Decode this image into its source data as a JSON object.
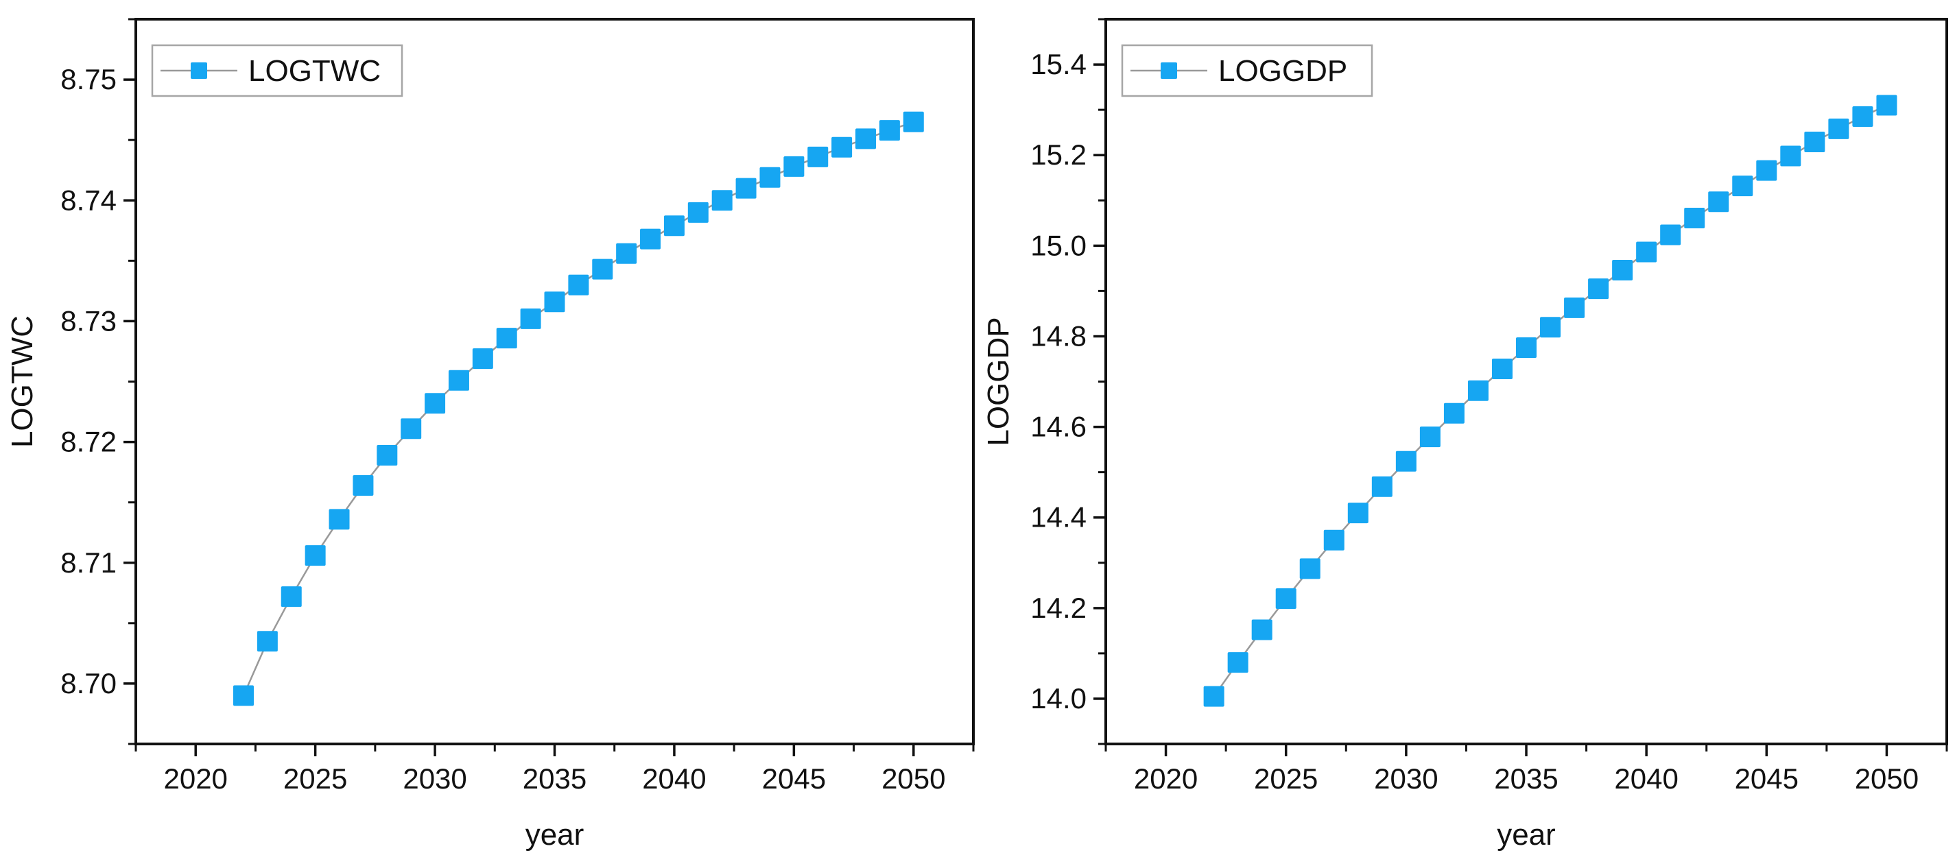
{
  "page": {
    "background": "#ffffff"
  },
  "colors": {
    "marker_fill": "#16a6f2",
    "series_line": "#999999",
    "axis_line": "#111111",
    "tick_label": "#111111",
    "legend_border": "#a6a6a6",
    "legend_background": "#ffffff"
  },
  "chart_data": [
    {
      "type": "line",
      "title": "",
      "xlabel": "year",
      "ylabel": "LOGTWC",
      "legend": {
        "label": "LOGTWC",
        "position": "top-left"
      },
      "grid": false,
      "marker": "square",
      "xlim": [
        2017.5,
        2052.5
      ],
      "ylim": [
        8.695,
        8.755
      ],
      "x_major_ticks": [
        2020,
        2025,
        2030,
        2035,
        2040,
        2045,
        2050
      ],
      "x_tick_labels": [
        "2020",
        "2025",
        "2030",
        "2035",
        "2040",
        "2045",
        "2050"
      ],
      "x_minor_step": 2.5,
      "y_major_ticks": [
        8.7,
        8.71,
        8.72,
        8.73,
        8.74,
        8.75
      ],
      "y_tick_labels": [
        "8.70",
        "8.71",
        "8.72",
        "8.73",
        "8.74",
        "8.75"
      ],
      "y_minor_step": 0.005,
      "series": [
        {
          "name": "LOGTWC",
          "x": [
            2022,
            2023,
            2024,
            2025,
            2026,
            2027,
            2028,
            2029,
            2030,
            2031,
            2032,
            2033,
            2034,
            2035,
            2036,
            2037,
            2038,
            2039,
            2040,
            2041,
            2042,
            2043,
            2044,
            2045,
            2046,
            2047,
            2048,
            2049,
            2050
          ],
          "values": [
            8.699,
            8.7035,
            8.7072,
            8.7106,
            8.7136,
            8.7164,
            8.7189,
            8.7211,
            8.7232,
            8.7251,
            8.7269,
            8.7286,
            8.7302,
            8.7316,
            8.733,
            8.7343,
            8.7356,
            8.7368,
            8.7379,
            8.739,
            8.74,
            8.741,
            8.7419,
            8.7428,
            8.7436,
            8.7444,
            8.7451,
            8.7458,
            8.7465
          ]
        }
      ]
    },
    {
      "type": "line",
      "title": "",
      "xlabel": "year",
      "ylabel": "LOGGDP",
      "legend": {
        "label": "LOGGDP",
        "position": "top-left"
      },
      "grid": false,
      "marker": "square",
      "xlim": [
        2017.5,
        2052.5
      ],
      "ylim": [
        13.9,
        15.5
      ],
      "x_major_ticks": [
        2020,
        2025,
        2030,
        2035,
        2040,
        2045,
        2050
      ],
      "x_tick_labels": [
        "2020",
        "2025",
        "2030",
        "2035",
        "2040",
        "2045",
        "2050"
      ],
      "x_minor_step": 2.5,
      "y_major_ticks": [
        14.0,
        14.2,
        14.4,
        14.6,
        14.8,
        15.0,
        15.2,
        15.4
      ],
      "y_tick_labels": [
        "14.0",
        "14.2",
        "14.4",
        "14.6",
        "14.8",
        "15.0",
        "15.2",
        "15.4"
      ],
      "y_minor_step": 0.1,
      "series": [
        {
          "name": "LOGGDP",
          "x": [
            2022,
            2023,
            2024,
            2025,
            2026,
            2027,
            2028,
            2029,
            2030,
            2031,
            2032,
            2033,
            2034,
            2035,
            2036,
            2037,
            2038,
            2039,
            2040,
            2041,
            2042,
            2043,
            2044,
            2045,
            2046,
            2047,
            2048,
            2049,
            2050
          ],
          "values": [
            14.005,
            14.08,
            14.152,
            14.221,
            14.287,
            14.35,
            14.41,
            14.468,
            14.524,
            14.578,
            14.63,
            14.68,
            14.728,
            14.775,
            14.82,
            14.863,
            14.905,
            14.946,
            14.986,
            15.024,
            15.061,
            15.097,
            15.132,
            15.166,
            15.198,
            15.229,
            15.258,
            15.285,
            15.31
          ]
        }
      ]
    }
  ]
}
